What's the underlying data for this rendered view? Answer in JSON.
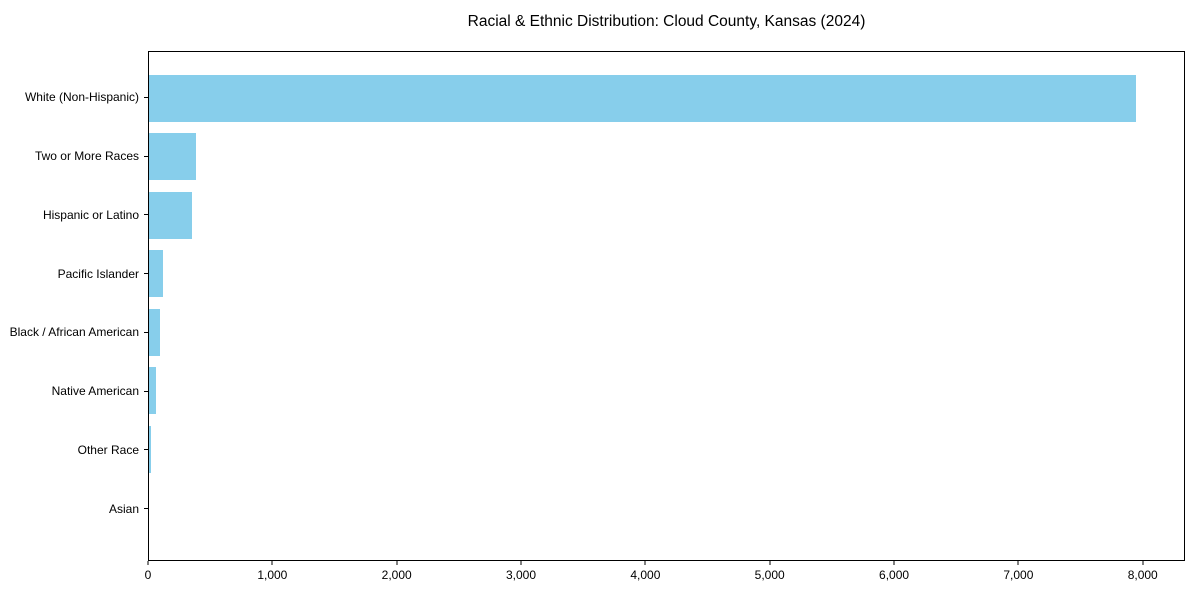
{
  "chart_data": {
    "type": "bar",
    "orientation": "horizontal",
    "title": "Racial & Ethnic Distribution: Cloud County, Kansas (2024)",
    "categories": [
      "White (Non-Hispanic)",
      "Two or More Races",
      "Hispanic or Latino",
      "Pacific Islander",
      "Black / African American",
      "Native American",
      "Other Race",
      "Asian"
    ],
    "values": [
      7950,
      380,
      350,
      110,
      85,
      60,
      15,
      0
    ],
    "xlabel": "",
    "ylabel": "",
    "xlim": [
      0,
      8340
    ],
    "xticks": [
      0,
      1000,
      2000,
      3000,
      4000,
      5000,
      6000,
      7000,
      8000
    ],
    "xtick_labels": [
      "0",
      "1,000",
      "2,000",
      "3,000",
      "4,000",
      "5,000",
      "6,000",
      "7,000",
      "8,000"
    ],
    "bar_color": "#87CEEB",
    "axis_color": "#000000",
    "text_color": "#000000",
    "background_color": "#ffffff",
    "grid": false,
    "legend": null
  }
}
